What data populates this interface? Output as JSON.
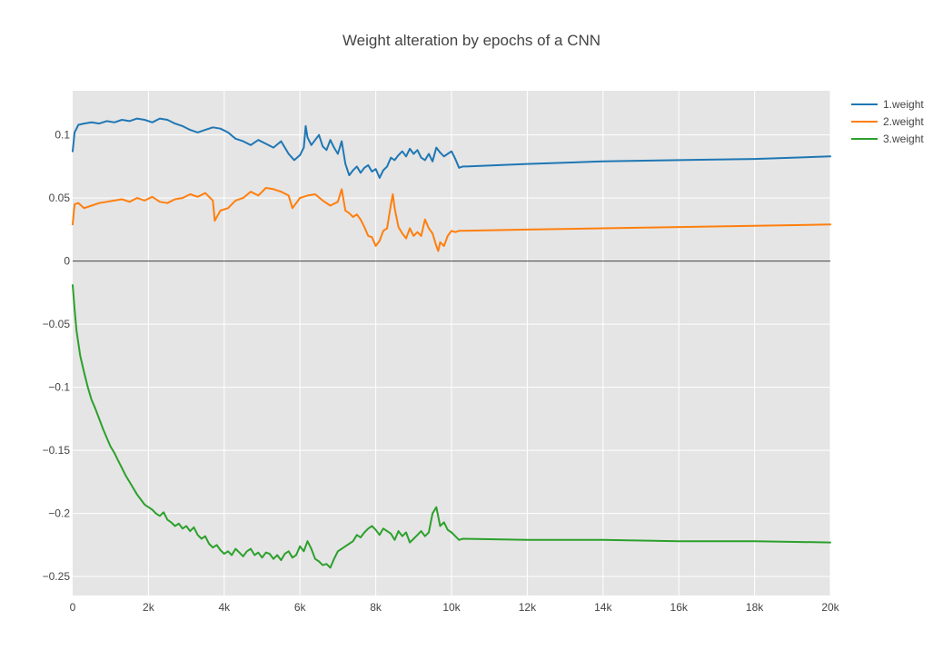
{
  "chart_data": {
    "type": "line",
    "title": "Weight alteration by epochs of a CNN",
    "xlabel": "",
    "ylabel": "",
    "xlim": [
      0,
      20000
    ],
    "ylim": [
      -0.265,
      0.135
    ],
    "x_ticks": [
      0,
      2000,
      4000,
      6000,
      8000,
      10000,
      12000,
      14000,
      16000,
      18000,
      20000
    ],
    "x_tick_labels": [
      "0",
      "2k",
      "4k",
      "6k",
      "8k",
      "10k",
      "12k",
      "14k",
      "16k",
      "18k",
      "20k"
    ],
    "y_ticks": [
      0.1,
      0.05,
      0,
      -0.05,
      -0.1,
      -0.15,
      -0.2,
      -0.25
    ],
    "y_tick_labels": [
      "0.1",
      "0.05",
      "0",
      "−0.05",
      "−0.1",
      "−0.15",
      "−0.2",
      "−0.25"
    ],
    "grid": true,
    "zero_line": true,
    "plot_background": "#e5e5e5",
    "legend_position": "top-right",
    "series": [
      {
        "name": "1.weight",
        "color": "#1f77b4",
        "x": [
          0,
          50,
          150,
          300,
          500,
          700,
          900,
          1100,
          1300,
          1500,
          1700,
          1900,
          2100,
          2300,
          2500,
          2700,
          2900,
          3100,
          3300,
          3500,
          3700,
          3900,
          4100,
          4300,
          4500,
          4700,
          4900,
          5100,
          5300,
          5500,
          5700,
          5850,
          6000,
          6100,
          6150,
          6200,
          6300,
          6400,
          6500,
          6600,
          6700,
          6800,
          6900,
          7000,
          7100,
          7200,
          7300,
          7400,
          7500,
          7600,
          7700,
          7800,
          7900,
          8000,
          8100,
          8200,
          8300,
          8400,
          8500,
          8600,
          8700,
          8800,
          8900,
          9000,
          9100,
          9200,
          9300,
          9400,
          9500,
          9600,
          9700,
          9800,
          9900,
          10000,
          10100,
          10200,
          10300,
          10400,
          12000,
          14000,
          16000,
          18000,
          20000
        ],
        "y": [
          0.087,
          0.102,
          0.108,
          0.109,
          0.11,
          0.109,
          0.111,
          0.11,
          0.112,
          0.111,
          0.113,
          0.112,
          0.11,
          0.113,
          0.112,
          0.109,
          0.107,
          0.104,
          0.102,
          0.104,
          0.106,
          0.105,
          0.102,
          0.097,
          0.095,
          0.092,
          0.096,
          0.093,
          0.09,
          0.095,
          0.085,
          0.08,
          0.084,
          0.09,
          0.107,
          0.098,
          0.092,
          0.096,
          0.1,
          0.091,
          0.088,
          0.096,
          0.09,
          0.085,
          0.095,
          0.077,
          0.068,
          0.072,
          0.075,
          0.07,
          0.074,
          0.076,
          0.071,
          0.073,
          0.066,
          0.072,
          0.075,
          0.082,
          0.08,
          0.084,
          0.087,
          0.083,
          0.089,
          0.085,
          0.088,
          0.082,
          0.08,
          0.085,
          0.079,
          0.09,
          0.086,
          0.083,
          0.085,
          0.087,
          0.081,
          0.074,
          0.075,
          0.075,
          0.077,
          0.079,
          0.08,
          0.081,
          0.083
        ]
      },
      {
        "name": "2.weight",
        "color": "#ff7f0e",
        "x": [
          0,
          50,
          150,
          300,
          500,
          700,
          900,
          1100,
          1300,
          1500,
          1700,
          1900,
          2100,
          2300,
          2500,
          2700,
          2900,
          3100,
          3300,
          3500,
          3700,
          3750,
          3900,
          4100,
          4300,
          4500,
          4700,
          4900,
          5100,
          5300,
          5500,
          5700,
          5800,
          6000,
          6200,
          6400,
          6600,
          6800,
          7000,
          7100,
          7200,
          7300,
          7400,
          7500,
          7600,
          7700,
          7800,
          7900,
          8000,
          8100,
          8200,
          8300,
          8400,
          8450,
          8500,
          8600,
          8700,
          8800,
          8900,
          9000,
          9100,
          9200,
          9300,
          9400,
          9500,
          9600,
          9650,
          9700,
          9800,
          9900,
          10000,
          10100,
          10200,
          10300,
          12000,
          14000,
          16000,
          18000,
          20000
        ],
        "y": [
          0.029,
          0.045,
          0.046,
          0.042,
          0.044,
          0.046,
          0.047,
          0.048,
          0.049,
          0.047,
          0.05,
          0.048,
          0.051,
          0.047,
          0.046,
          0.049,
          0.05,
          0.053,
          0.051,
          0.054,
          0.048,
          0.032,
          0.04,
          0.042,
          0.048,
          0.05,
          0.055,
          0.052,
          0.058,
          0.057,
          0.055,
          0.052,
          0.042,
          0.05,
          0.052,
          0.053,
          0.048,
          0.044,
          0.047,
          0.057,
          0.04,
          0.038,
          0.035,
          0.037,
          0.033,
          0.027,
          0.02,
          0.019,
          0.012,
          0.016,
          0.024,
          0.026,
          0.045,
          0.053,
          0.042,
          0.027,
          0.022,
          0.018,
          0.026,
          0.02,
          0.023,
          0.02,
          0.033,
          0.026,
          0.022,
          0.012,
          0.008,
          0.015,
          0.012,
          0.02,
          0.024,
          0.023,
          0.024,
          0.024,
          0.025,
          0.026,
          0.027,
          0.028,
          0.029
        ]
      },
      {
        "name": "3.weight",
        "color": "#2ca02c",
        "x": [
          0,
          20,
          50,
          100,
          200,
          300,
          400,
          500,
          600,
          700,
          800,
          900,
          1000,
          1100,
          1200,
          1300,
          1400,
          1500,
          1600,
          1700,
          1800,
          1900,
          2000,
          2100,
          2200,
          2300,
          2400,
          2500,
          2600,
          2700,
          2800,
          2900,
          3000,
          3100,
          3200,
          3300,
          3400,
          3500,
          3600,
          3700,
          3800,
          3900,
          4000,
          4100,
          4200,
          4300,
          4400,
          4500,
          4600,
          4700,
          4800,
          4900,
          5000,
          5100,
          5200,
          5300,
          5400,
          5500,
          5600,
          5700,
          5800,
          5900,
          6000,
          6100,
          6200,
          6300,
          6400,
          6500,
          6600,
          6700,
          6800,
          6900,
          7000,
          7100,
          7200,
          7300,
          7400,
          7500,
          7600,
          7700,
          7800,
          7900,
          8000,
          8100,
          8200,
          8300,
          8400,
          8500,
          8600,
          8700,
          8800,
          8900,
          9000,
          9100,
          9200,
          9300,
          9400,
          9500,
          9600,
          9700,
          9800,
          9900,
          10000,
          10100,
          10200,
          10300,
          12000,
          14000,
          16000,
          18000,
          20000
        ],
        "y": [
          -0.019,
          -0.026,
          -0.038,
          -0.055,
          -0.075,
          -0.088,
          -0.1,
          -0.11,
          -0.117,
          -0.125,
          -0.133,
          -0.14,
          -0.147,
          -0.152,
          -0.158,
          -0.164,
          -0.17,
          -0.175,
          -0.18,
          -0.185,
          -0.189,
          -0.193,
          -0.195,
          -0.197,
          -0.2,
          -0.202,
          -0.199,
          -0.205,
          -0.207,
          -0.21,
          -0.208,
          -0.212,
          -0.21,
          -0.214,
          -0.211,
          -0.217,
          -0.22,
          -0.218,
          -0.224,
          -0.227,
          -0.225,
          -0.229,
          -0.232,
          -0.23,
          -0.233,
          -0.228,
          -0.231,
          -0.234,
          -0.23,
          -0.228,
          -0.233,
          -0.231,
          -0.235,
          -0.231,
          -0.232,
          -0.236,
          -0.233,
          -0.237,
          -0.232,
          -0.23,
          -0.235,
          -0.233,
          -0.226,
          -0.23,
          -0.222,
          -0.228,
          -0.236,
          -0.238,
          -0.241,
          -0.24,
          -0.243,
          -0.236,
          -0.23,
          -0.228,
          -0.226,
          -0.224,
          -0.222,
          -0.217,
          -0.219,
          -0.215,
          -0.212,
          -0.21,
          -0.213,
          -0.217,
          -0.212,
          -0.214,
          -0.216,
          -0.221,
          -0.214,
          -0.218,
          -0.215,
          -0.223,
          -0.22,
          -0.217,
          -0.214,
          -0.218,
          -0.215,
          -0.2,
          -0.195,
          -0.21,
          -0.207,
          -0.213,
          -0.215,
          -0.218,
          -0.221,
          -0.22,
          -0.221,
          -0.221,
          -0.222,
          -0.222,
          -0.223
        ]
      }
    ]
  }
}
